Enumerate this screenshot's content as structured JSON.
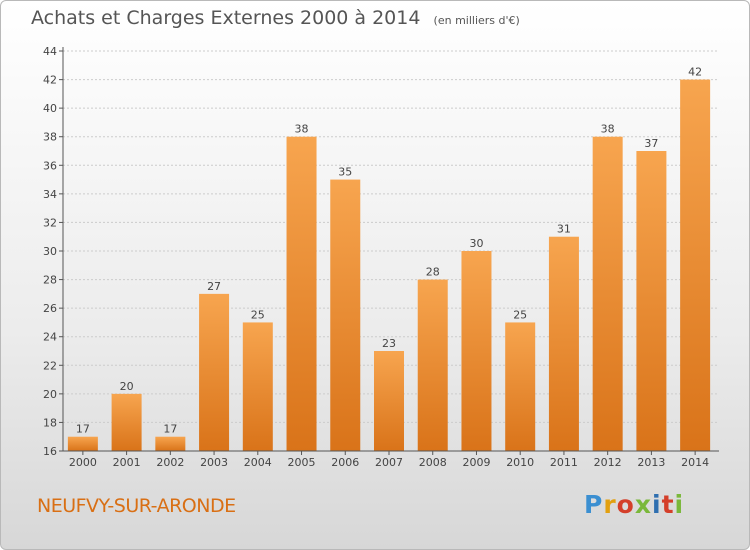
{
  "header": {
    "title": "Achats et Charges Externes 2000 à 2014",
    "unit": "(en milliers d'€)"
  },
  "footer": {
    "commune": "NEUFVY-SUR-ARONDE",
    "logo": [
      "P",
      "r",
      "o",
      "x",
      "i",
      "t",
      "i"
    ]
  },
  "colors": {
    "bar_light": "#f7a54f",
    "bar_dark": "#d97319",
    "grid": "#cccccc",
    "accent": "#d96f14"
  },
  "chart_data": {
    "type": "bar",
    "title": "Achats et Charges Externes 2000 à 2014",
    "subtitle": "(en milliers d'€)",
    "categories": [
      "2000",
      "2001",
      "2002",
      "2003",
      "2004",
      "2005",
      "2006",
      "2007",
      "2008",
      "2009",
      "2010",
      "2011",
      "2012",
      "2013",
      "2014"
    ],
    "values": [
      17,
      20,
      17,
      27,
      25,
      38,
      35,
      23,
      28,
      30,
      25,
      31,
      38,
      37,
      42
    ],
    "ylim": [
      16,
      44
    ],
    "yticks": [
      16,
      18,
      20,
      22,
      24,
      26,
      28,
      30,
      32,
      34,
      36,
      38,
      40,
      42,
      44
    ],
    "grid": true,
    "legend": "none",
    "xlabel": "",
    "ylabel": ""
  }
}
